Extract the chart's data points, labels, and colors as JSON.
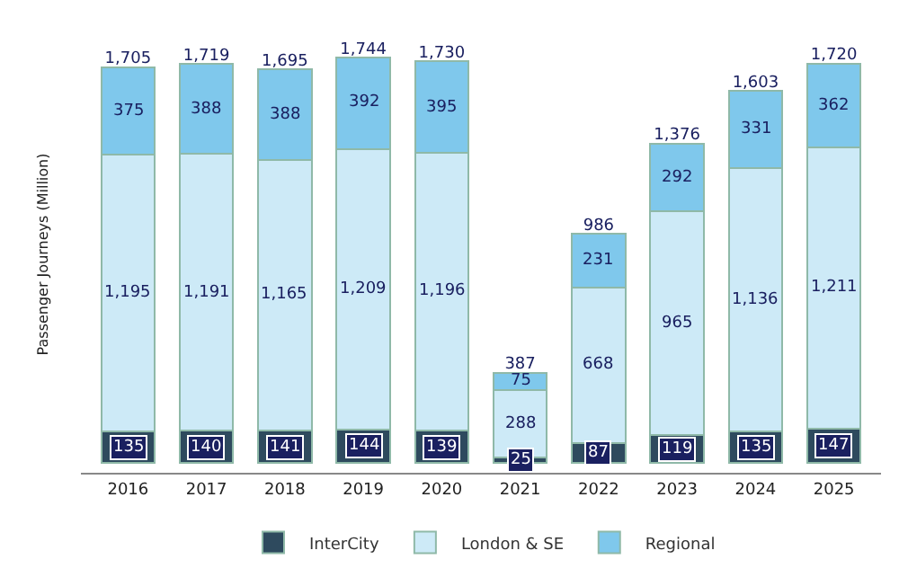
{
  "chart_data": {
    "type": "bar",
    "stacked": true,
    "ylabel": "Passenger Journeys (Million)",
    "categories": [
      "2016",
      "2017",
      "2018",
      "2019",
      "2020",
      "2021",
      "2022",
      "2023",
      "2024",
      "2025"
    ],
    "series": [
      {
        "name": "InterCity",
        "color": "#2e4a5e",
        "values": [
          135,
          140,
          141,
          144,
          139,
          25,
          87,
          119,
          135,
          147
        ],
        "value_labels": [
          "135",
          "140",
          "141",
          "144",
          "139",
          "25",
          "87",
          "119",
          "135",
          "147"
        ]
      },
      {
        "name": "London & SE",
        "color": "#cdeaf7",
        "values": [
          1195,
          1191,
          1165,
          1209,
          1196,
          288,
          668,
          965,
          1136,
          1211
        ],
        "value_labels": [
          "1,195",
          "1,191",
          "1,165",
          "1,209",
          "1,196",
          "288",
          "668",
          "965",
          "1,136",
          "1,211"
        ]
      },
      {
        "name": "Regional",
        "color": "#7fc8ec",
        "values": [
          375,
          388,
          388,
          392,
          395,
          75,
          231,
          292,
          331,
          362
        ],
        "value_labels": [
          "375",
          "388",
          "388",
          "392",
          "395",
          "75",
          "231",
          "292",
          "331",
          "362"
        ]
      }
    ],
    "totals": [
      "1,705",
      "1,719",
      "1,695",
      "1,744",
      "1,730",
      "387",
      "986",
      "1,376",
      "1,603",
      "1,720"
    ],
    "legend": "bottom"
  }
}
